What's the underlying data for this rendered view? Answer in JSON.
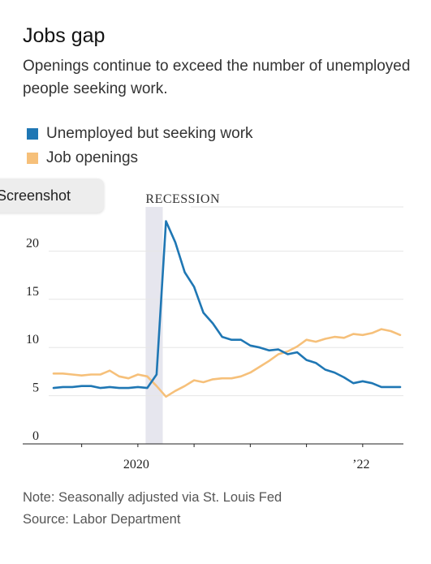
{
  "header": {
    "title": "Jobs gap",
    "subtitle": "Openings continue to exceed the number of unemployed people seeking work."
  },
  "legend": {
    "items": [
      {
        "label": "Unemployed but seeking work",
        "color": "#1f77b4"
      },
      {
        "label": "Job openings",
        "color": "#f6c07a"
      }
    ]
  },
  "overlay": {
    "screenshot_label": "Screenshot"
  },
  "footer": {
    "note": "Note: Seasonally adjusted via St. Louis Fed",
    "source": "Source: Labor Department"
  },
  "chart_data": {
    "type": "line",
    "x": [
      "2019-04",
      "2019-05",
      "2019-06",
      "2019-07",
      "2019-08",
      "2019-09",
      "2019-10",
      "2019-11",
      "2019-12",
      "2020-01",
      "2020-02",
      "2020-03",
      "2020-04",
      "2020-05",
      "2020-06",
      "2020-07",
      "2020-08",
      "2020-09",
      "2020-10",
      "2020-11",
      "2020-12",
      "2021-01",
      "2021-02",
      "2021-03",
      "2021-04",
      "2021-05",
      "2021-06",
      "2021-07",
      "2021-08",
      "2021-09",
      "2021-10",
      "2021-11",
      "2021-12",
      "2022-01",
      "2022-02",
      "2022-03",
      "2022-04",
      "2022-05"
    ],
    "series": [
      {
        "name": "Unemployed but seeking work",
        "color": "#1f77b4",
        "values": [
          5.8,
          5.9,
          5.9,
          6.0,
          6.0,
          5.8,
          5.9,
          5.8,
          5.8,
          5.9,
          5.8,
          7.2,
          23.1,
          20.9,
          17.8,
          16.3,
          13.6,
          12.5,
          11.1,
          10.8,
          10.8,
          10.2,
          10.0,
          9.7,
          9.8,
          9.3,
          9.5,
          8.7,
          8.4,
          7.7,
          7.4,
          6.9,
          6.3,
          6.5,
          6.3,
          5.9,
          5.9,
          5.9
        ]
      },
      {
        "name": "Job openings",
        "color": "#f6c07a",
        "values": [
          7.3,
          7.3,
          7.2,
          7.1,
          7.2,
          7.2,
          7.6,
          7.0,
          6.8,
          7.2,
          7.0,
          6.0,
          4.9,
          5.5,
          6.0,
          6.6,
          6.4,
          6.7,
          6.8,
          6.8,
          7.0,
          7.4,
          8.0,
          8.6,
          9.3,
          9.6,
          10.1,
          10.8,
          10.6,
          10.9,
          11.1,
          11.0,
          11.4,
          11.3,
          11.5,
          11.9,
          11.7,
          11.3
        ]
      }
    ],
    "ylim": [
      0,
      25
    ],
    "yticks": [
      0,
      5,
      10,
      15,
      20
    ],
    "xtick_labels": [
      {
        "x": "2020-01",
        "label": "2020"
      },
      {
        "x": "2022-01",
        "label": "’22"
      }
    ],
    "annotations": [
      {
        "type": "shaded-band",
        "x_start": "2020-02",
        "x_end": "2020-04",
        "label": "RECESSION",
        "color": "#e6e6ee"
      }
    ],
    "grid": true,
    "legend_placement": "top-left"
  }
}
